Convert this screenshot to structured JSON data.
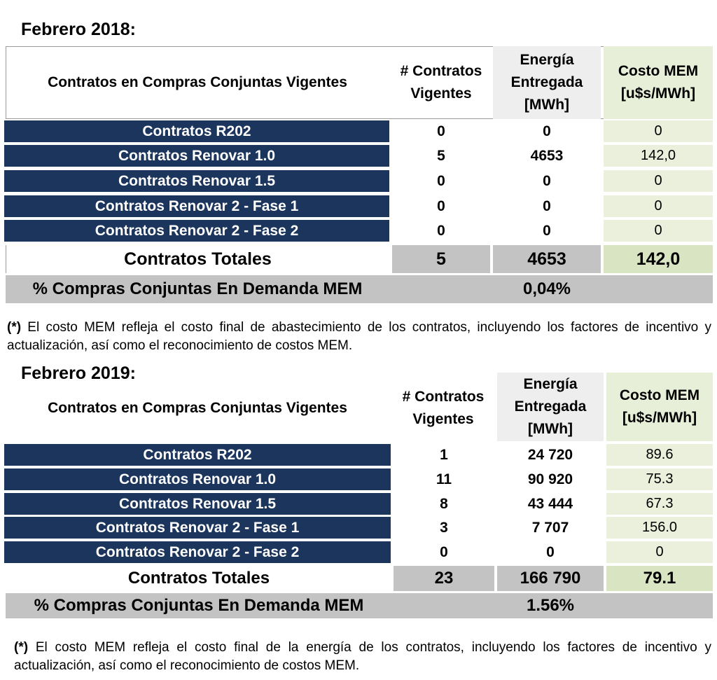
{
  "t1": {
    "heading": "Febrero 2018:",
    "col_title": "Contratos en Compras Conjuntas Vigentes",
    "col_contratos": "# Contratos Vigentes",
    "col_energia": "Energía Entregada [MWh]",
    "col_costo": "Costo MEM [u$s/MWh]",
    "rows": [
      {
        "label": "Contratos R202",
        "contratos": "0",
        "energia": "0",
        "costo": "0"
      },
      {
        "label": "Contratos Renovar 1.0",
        "contratos": "5",
        "energia": "4653",
        "costo": "142,0"
      },
      {
        "label": "Contratos Renovar 1.5",
        "contratos": "0",
        "energia": "0",
        "costo": "0"
      },
      {
        "label": "Contratos Renovar 2 - Fase 1",
        "contratos": "0",
        "energia": "0",
        "costo": "0"
      },
      {
        "label": "Contratos Renovar 2 - Fase 2",
        "contratos": "0",
        "energia": "0",
        "costo": "0"
      }
    ],
    "total_label": "Contratos Totales",
    "total_contratos": "5",
    "total_energia": "4653",
    "total_costo": "142,0",
    "pct_label": "% Compras Conjuntas En Demanda MEM",
    "pct_value": "0,04%",
    "note_mark": "(*)",
    "note_text": " El costo MEM refleja el costo final de abastecimiento de los contratos, incluyendo los factores de incentivo y actualización, así como el reconocimiento de costos MEM."
  },
  "t2": {
    "heading": "Febrero 2019:",
    "col_title": "Contratos en Compras Conjuntas Vigentes",
    "col_contratos": "# Contratos Vigentes",
    "col_energia": "Energía Entregada [MWh]",
    "col_costo": "Costo MEM [u$s/MWh]",
    "rows": [
      {
        "label": "Contratos R202",
        "contratos": "1",
        "energia": "24 720",
        "costo": "89.6"
      },
      {
        "label": "Contratos Renovar 1.0",
        "contratos": "11",
        "energia": "90 920",
        "costo": "75.3"
      },
      {
        "label": "Contratos Renovar 1.5",
        "contratos": "8",
        "energia": "43 444",
        "costo": "67.3"
      },
      {
        "label": "Contratos Renovar 2 - Fase 1",
        "contratos": "3",
        "energia": "7 707",
        "costo": "156.0"
      },
      {
        "label": "Contratos Renovar 2 - Fase 2",
        "contratos": "0",
        "energia": "0",
        "costo": "0"
      }
    ],
    "total_label": "Contratos Totales",
    "total_contratos": "23",
    "total_energia": "166 790",
    "total_costo": "79.1",
    "pct_label": "% Compras Conjuntas En Demanda MEM",
    "pct_value": "1.56%",
    "note_mark": "(*)",
    "note_text": " El costo MEM refleja el costo final de la energía de los contratos, incluyendo los factores de incentivo y actualización, así como el reconocimiento de costos MEM."
  }
}
